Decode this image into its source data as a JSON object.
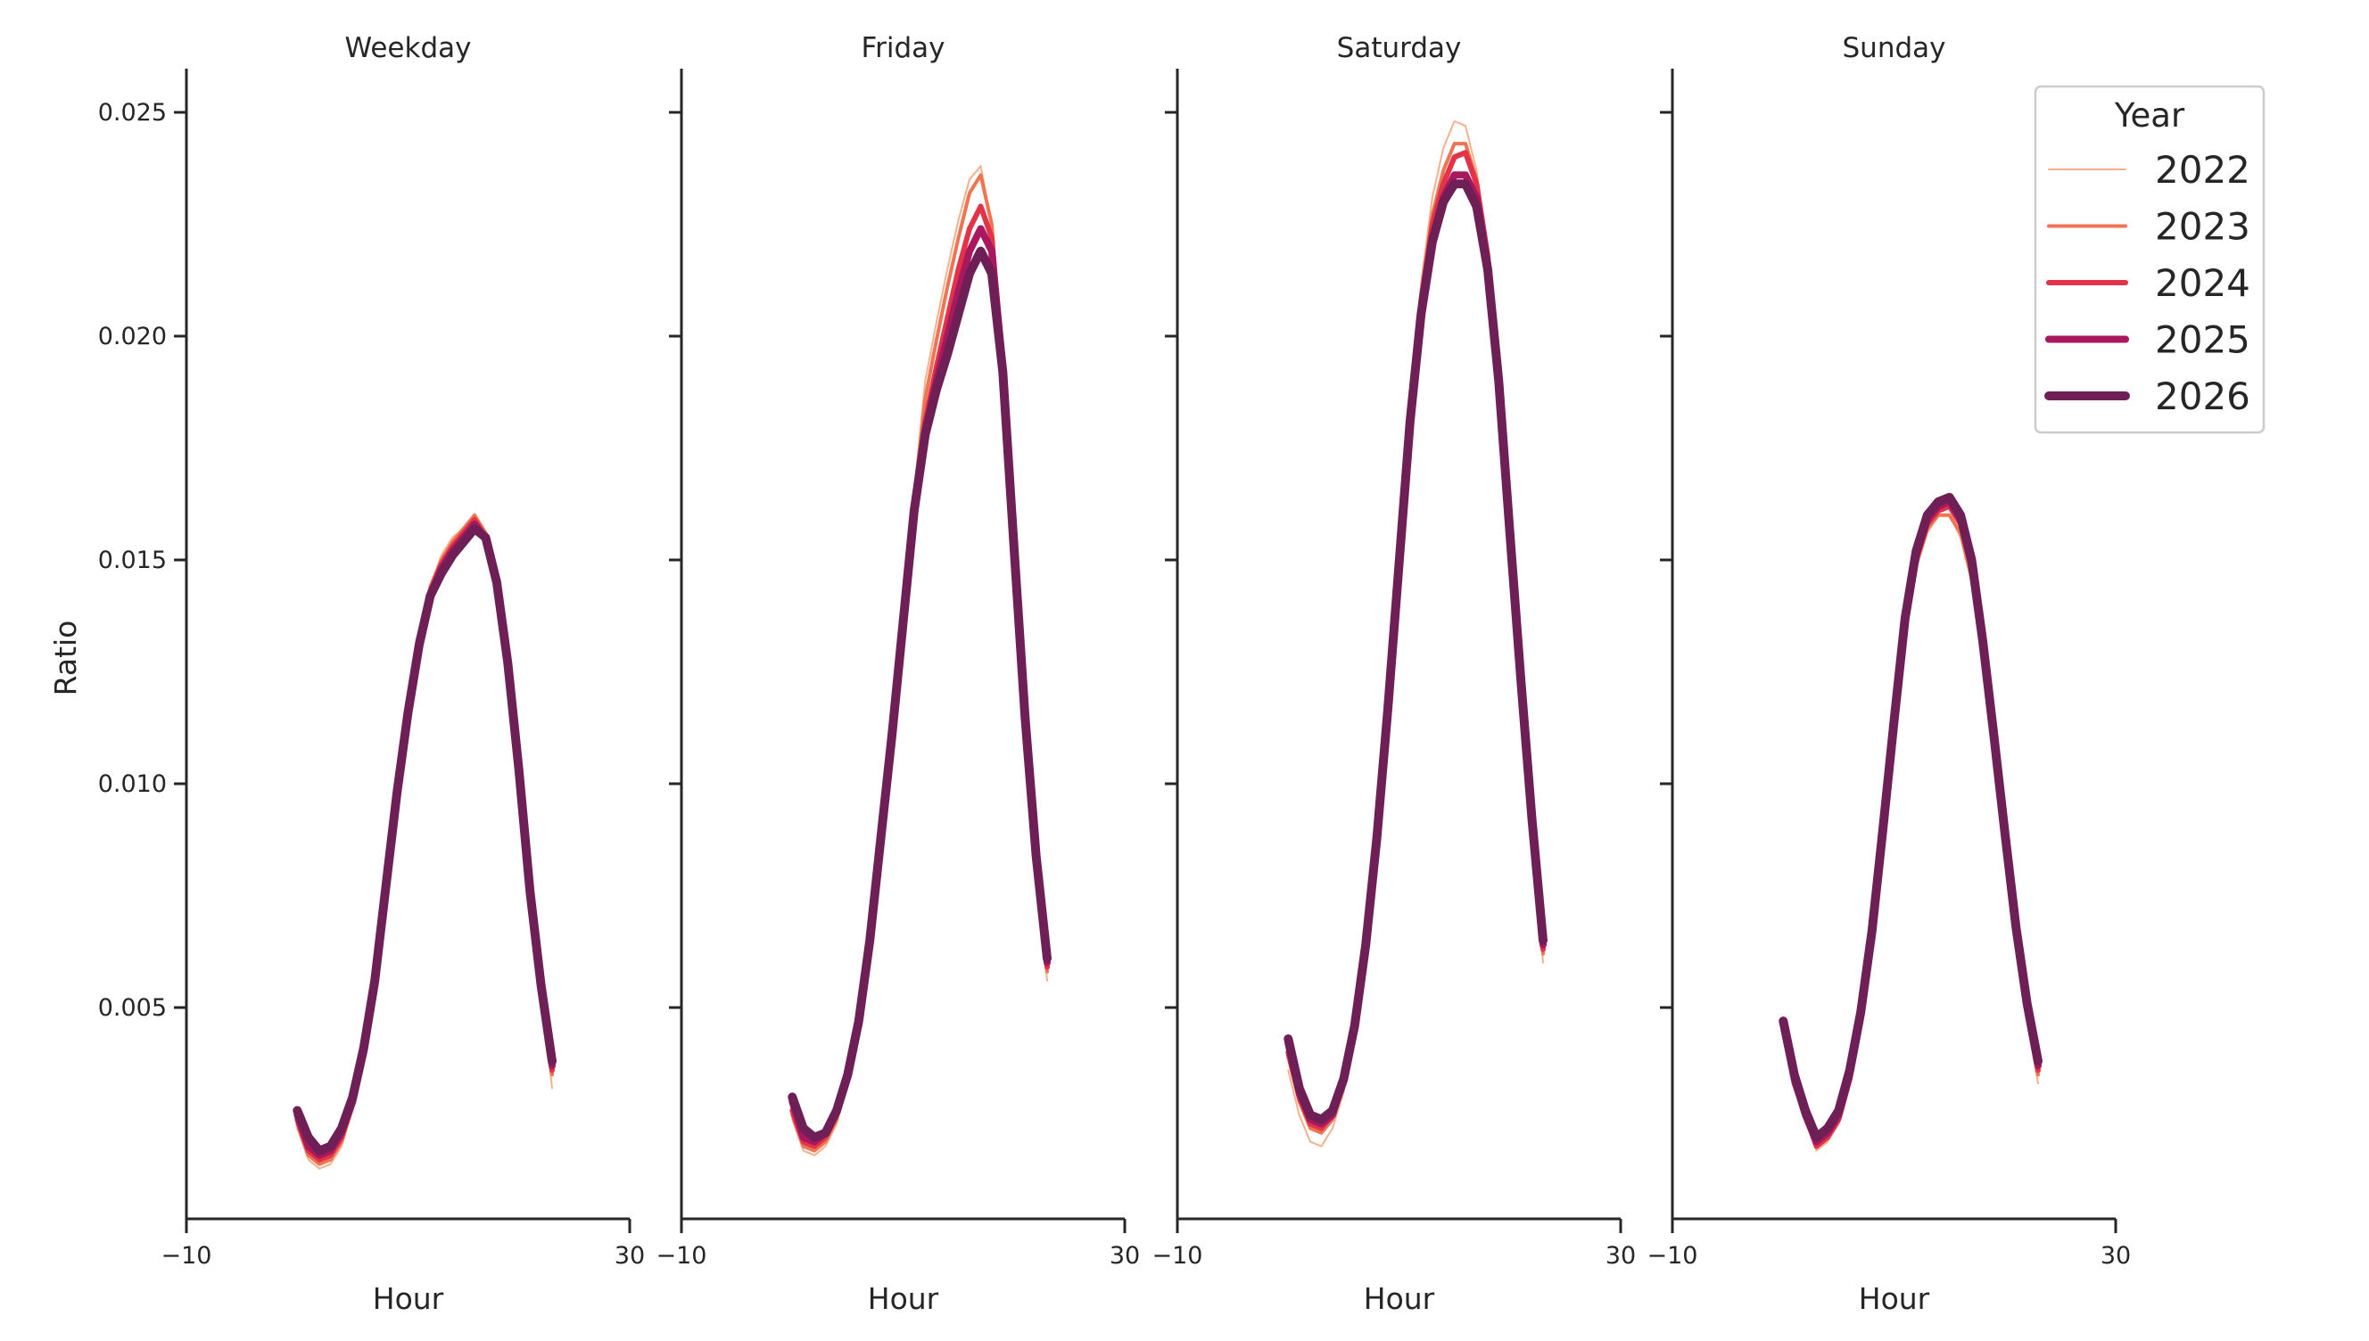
{
  "chart_data": {
    "type": "line",
    "layout": "facet-grid 1x4, shared y-axis",
    "ylabel": "Ratio",
    "xlabel": "Hour",
    "xlim": [
      -10,
      30
    ],
    "ylim": [
      0.0,
      0.026
    ],
    "x_ticks": [
      "−10",
      "30"
    ],
    "x_tick_values": [
      -10,
      30
    ],
    "y_ticks": [
      "0.005",
      "0.010",
      "0.015",
      "0.020",
      "0.025"
    ],
    "y_tick_values": [
      0.005,
      0.01,
      0.015,
      0.02,
      0.025
    ],
    "grid": false,
    "legend": {
      "title": "Year",
      "position": "upper right (inside Sunday panel)",
      "entries": [
        {
          "label": "2022",
          "color": "#f6b08c",
          "width": 2
        },
        {
          "label": "2023",
          "color": "#ef7552",
          "width": 4
        },
        {
          "label": "2024",
          "color": "#e23349",
          "width": 6
        },
        {
          "label": "2025",
          "color": "#a8185e",
          "width": 8
        },
        {
          "label": "2026",
          "color": "#6d1f56",
          "width": 10
        }
      ]
    },
    "x": [
      0,
      1,
      2,
      3,
      4,
      5,
      6,
      7,
      8,
      9,
      10,
      11,
      12,
      13,
      14,
      15,
      16,
      17,
      18,
      19,
      20,
      21,
      22,
      23
    ],
    "panels": [
      {
        "title": "Weekday",
        "series": [
          {
            "name": "2022",
            "values": [
              0.0023,
              0.0016,
              0.0014,
              0.0015,
              0.0019,
              0.0027,
              0.0039,
              0.0055,
              0.0076,
              0.0097,
              0.0117,
              0.0133,
              0.0144,
              0.0151,
              0.0155,
              0.0157,
              0.016,
              0.0156,
              0.0145,
              0.0126,
              0.0101,
              0.0075,
              0.0053,
              0.0032
            ]
          },
          {
            "name": "2023",
            "values": [
              0.0024,
              0.0017,
              0.0015,
              0.0016,
              0.002,
              0.0028,
              0.004,
              0.0055,
              0.0076,
              0.0097,
              0.0117,
              0.0133,
              0.0144,
              0.015,
              0.0154,
              0.0157,
              0.016,
              0.0156,
              0.0145,
              0.0126,
              0.0101,
              0.0075,
              0.0054,
              0.0035
            ]
          },
          {
            "name": "2024",
            "values": [
              0.0025,
              0.0018,
              0.0016,
              0.0017,
              0.0021,
              0.0029,
              0.004,
              0.0055,
              0.0076,
              0.0097,
              0.0116,
              0.0132,
              0.0143,
              0.0149,
              0.0153,
              0.0156,
              0.0159,
              0.0155,
              0.0145,
              0.0126,
              0.0102,
              0.0076,
              0.0054,
              0.0036
            ]
          },
          {
            "name": "2025",
            "values": [
              0.0026,
              0.0019,
              0.0017,
              0.0018,
              0.0022,
              0.0029,
              0.004,
              0.0055,
              0.0076,
              0.0097,
              0.0116,
              0.0132,
              0.0142,
              0.0148,
              0.0152,
              0.0155,
              0.0158,
              0.0155,
              0.0145,
              0.0126,
              0.0102,
              0.0076,
              0.0055,
              0.0037
            ]
          },
          {
            "name": "2026",
            "values": [
              0.0027,
              0.0021,
              0.0018,
              0.0019,
              0.0023,
              0.003,
              0.0041,
              0.0056,
              0.0077,
              0.0098,
              0.0116,
              0.0131,
              0.0142,
              0.0147,
              0.0151,
              0.0154,
              0.0157,
              0.0155,
              0.0145,
              0.0127,
              0.0103,
              0.0076,
              0.0055,
              0.0038
            ]
          }
        ]
      },
      {
        "title": "Friday",
        "series": [
          {
            "name": "2022",
            "values": [
              0.0025,
              0.0018,
              0.0017,
              0.0019,
              0.0024,
              0.0033,
              0.0047,
              0.0065,
              0.0089,
              0.0113,
              0.0139,
              0.0165,
              0.019,
              0.0203,
              0.0215,
              0.0226,
              0.0235,
              0.0238,
              0.0225,
              0.0192,
              0.015,
              0.0112,
              0.008,
              0.0056
            ]
          },
          {
            "name": "2023",
            "values": [
              0.0026,
              0.0019,
              0.0018,
              0.002,
              0.0025,
              0.0034,
              0.0047,
              0.0065,
              0.0089,
              0.0113,
              0.0139,
              0.0164,
              0.0186,
              0.0199,
              0.0211,
              0.0222,
              0.0232,
              0.0236,
              0.0225,
              0.0193,
              0.0151,
              0.0112,
              0.0081,
              0.0058
            ]
          },
          {
            "name": "2024",
            "values": [
              0.0027,
              0.002,
              0.0019,
              0.0021,
              0.0026,
              0.0034,
              0.0047,
              0.0065,
              0.0088,
              0.0112,
              0.0138,
              0.0163,
              0.0181,
              0.0193,
              0.0204,
              0.0215,
              0.0224,
              0.0229,
              0.0222,
              0.0193,
              0.0152,
              0.0113,
              0.0082,
              0.0059
            ]
          },
          {
            "name": "2025",
            "values": [
              0.0029,
              0.0021,
              0.002,
              0.0022,
              0.0027,
              0.0035,
              0.0047,
              0.0065,
              0.0088,
              0.0112,
              0.0137,
              0.0162,
              0.0179,
              0.019,
              0.02,
              0.021,
              0.0219,
              0.0224,
              0.0219,
              0.0193,
              0.0153,
              0.0114,
              0.0083,
              0.006
            ]
          },
          {
            "name": "2026",
            "values": [
              0.003,
              0.0023,
              0.0021,
              0.0022,
              0.0027,
              0.0035,
              0.0047,
              0.0065,
              0.0088,
              0.0111,
              0.0136,
              0.0161,
              0.0178,
              0.0188,
              0.0196,
              0.0205,
              0.0214,
              0.0219,
              0.0214,
              0.0192,
              0.0153,
              0.0115,
              0.0084,
              0.0061
            ]
          }
        ]
      },
      {
        "title": "Saturday",
        "series": [
          {
            "name": "2022",
            "values": [
              0.0036,
              0.0026,
              0.002,
              0.0019,
              0.0023,
              0.0031,
              0.0045,
              0.0063,
              0.0088,
              0.0118,
              0.0152,
              0.0186,
              0.0212,
              0.0231,
              0.0242,
              0.0248,
              0.0247,
              0.0237,
              0.0219,
              0.0191,
              0.0155,
              0.0121,
              0.0089,
              0.006
            ]
          },
          {
            "name": "2023",
            "values": [
              0.0039,
              0.0029,
              0.0023,
              0.0022,
              0.0025,
              0.0033,
              0.0046,
              0.0064,
              0.0088,
              0.0118,
              0.0151,
              0.0184,
              0.0209,
              0.0227,
              0.0237,
              0.0243,
              0.0243,
              0.0235,
              0.0218,
              0.0191,
              0.0156,
              0.0122,
              0.009,
              0.0062
            ]
          },
          {
            "name": "2024",
            "values": [
              0.004,
              0.003,
              0.0024,
              0.0023,
              0.0026,
              0.0034,
              0.0046,
              0.0064,
              0.0088,
              0.0117,
              0.015,
              0.0183,
              0.0208,
              0.0225,
              0.0234,
              0.024,
              0.0241,
              0.0234,
              0.0218,
              0.0191,
              0.0156,
              0.0122,
              0.0091,
              0.0063
            ]
          },
          {
            "name": "2025",
            "values": [
              0.0042,
              0.0031,
              0.0025,
              0.0024,
              0.0026,
              0.0034,
              0.0046,
              0.0064,
              0.0088,
              0.0117,
              0.015,
              0.0182,
              0.0206,
              0.0222,
              0.0231,
              0.0236,
              0.0236,
              0.0231,
              0.0216,
              0.019,
              0.0156,
              0.0122,
              0.0091,
              0.0064
            ]
          },
          {
            "name": "2026",
            "values": [
              0.0043,
              0.0032,
              0.0026,
              0.0025,
              0.0027,
              0.0034,
              0.0046,
              0.0064,
              0.0088,
              0.0117,
              0.0149,
              0.0181,
              0.0205,
              0.0221,
              0.023,
              0.0234,
              0.0234,
              0.0229,
              0.0215,
              0.019,
              0.0156,
              0.0123,
              0.0092,
              0.0065
            ]
          }
        ]
      },
      {
        "title": "Sunday",
        "series": [
          {
            "name": "2022",
            "values": [
              0.0045,
              0.0032,
              0.0025,
              0.0018,
              0.002,
              0.0024,
              0.0033,
              0.0046,
              0.0064,
              0.0086,
              0.011,
              0.0133,
              0.0148,
              0.0156,
              0.016,
              0.016,
              0.0155,
              0.0145,
              0.0128,
              0.0107,
              0.0086,
              0.0065,
              0.0047,
              0.0033
            ]
          },
          {
            "name": "2023",
            "values": [
              0.0045,
              0.0033,
              0.0025,
              0.0019,
              0.0021,
              0.0025,
              0.0034,
              0.0046,
              0.0064,
              0.0087,
              0.0111,
              0.0134,
              0.0149,
              0.0157,
              0.016,
              0.016,
              0.0156,
              0.0146,
              0.0129,
              0.0108,
              0.0087,
              0.0066,
              0.0048,
              0.0035
            ]
          },
          {
            "name": "2024",
            "values": [
              0.0046,
              0.0033,
              0.0026,
              0.0019,
              0.0021,
              0.0025,
              0.0034,
              0.0047,
              0.0065,
              0.0088,
              0.0112,
              0.0135,
              0.015,
              0.0158,
              0.0161,
              0.0162,
              0.0158,
              0.0148,
              0.013,
              0.0109,
              0.0088,
              0.0067,
              0.0049,
              0.0036
            ]
          },
          {
            "name": "2025",
            "values": [
              0.0047,
              0.0034,
              0.0026,
              0.002,
              0.0022,
              0.0026,
              0.0035,
              0.0048,
              0.0066,
              0.0089,
              0.0113,
              0.0136,
              0.0151,
              0.0159,
              0.0162,
              0.0163,
              0.0159,
              0.0149,
              0.0131,
              0.011,
              0.0088,
              0.0067,
              0.005,
              0.0037
            ]
          },
          {
            "name": "2026",
            "values": [
              0.0047,
              0.0035,
              0.0027,
              0.0021,
              0.0023,
              0.0027,
              0.0036,
              0.0049,
              0.0067,
              0.009,
              0.0114,
              0.0137,
              0.0152,
              0.016,
              0.0163,
              0.0164,
              0.016,
              0.015,
              0.0132,
              0.0111,
              0.0089,
              0.0068,
              0.0051,
              0.0038
            ]
          }
        ]
      }
    ]
  }
}
